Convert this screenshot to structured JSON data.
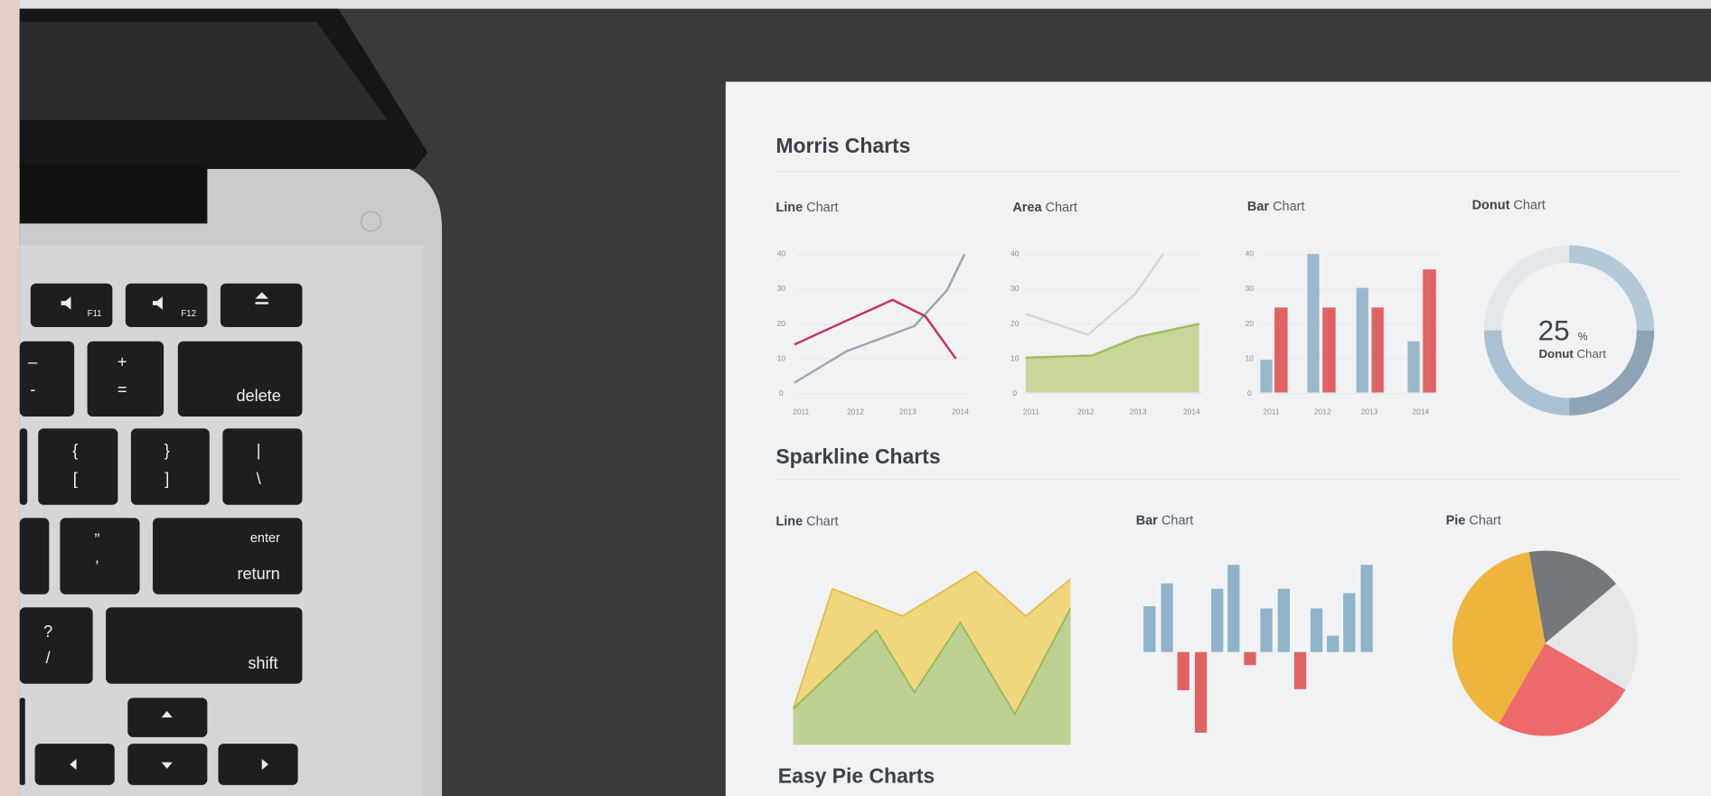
{
  "laptop": {
    "keys": {
      "f11": "F11",
      "f12": "F12",
      "minus_top": "–",
      "minus_bottom": "-",
      "plus": "+",
      "equals": "=",
      "delete": "delete",
      "brace_open": "{",
      "bracket_open": "[",
      "brace_close": "}",
      "bracket_close": "]",
      "pipe": "|",
      "backslash": "\\",
      "quote": "”",
      "comma": "’",
      "enter": "enter",
      "return": "return",
      "question": "?",
      "slash": "/",
      "shift": "shift"
    }
  },
  "paper": {
    "morris": {
      "title": "Morris Charts",
      "charts": [
        {
          "bold": "Line",
          "rest": "Chart",
          "yticks": [
            40,
            30,
            20,
            10,
            0
          ],
          "xticks": [
            2011,
            2012,
            2013,
            2014
          ]
        },
        {
          "bold": "Area",
          "rest": "Chart",
          "yticks": [
            40,
            30,
            20,
            10,
            0
          ],
          "xticks": [
            2011,
            2012,
            2013,
            2014
          ]
        },
        {
          "bold": "Bar",
          "rest": "Chart",
          "yticks": [
            40,
            30,
            20,
            10,
            0
          ],
          "xticks": [
            2011,
            2012,
            2013,
            2014
          ]
        },
        {
          "bold": "Donut",
          "rest": "Chart",
          "center_value": 25,
          "center_unit": "%",
          "center_label_bold": "Donut",
          "center_label_rest": "Chart"
        }
      ]
    },
    "sparkline": {
      "title": "Sparkline Charts",
      "charts": [
        {
          "bold": "Line",
          "rest": "Chart"
        },
        {
          "bold": "Bar",
          "rest": "Chart"
        },
        {
          "bold": "Pie",
          "rest": "Chart"
        }
      ]
    },
    "easy_pie": {
      "title": "Easy Pie Charts"
    }
  }
}
